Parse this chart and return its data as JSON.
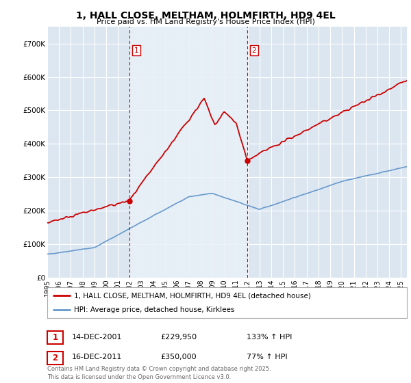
{
  "title": "1, HALL CLOSE, MELTHAM, HOLMFIRTH, HD9 4EL",
  "subtitle": "Price paid vs. HM Land Registry's House Price Index (HPI)",
  "background_color": "#ffffff",
  "plot_bg_color": "#dce6f1",
  "plot_bg_between": "#e8f0f8",
  "grid_color": "#ffffff",
  "hpi_color": "#6699cc",
  "price_color": "#cc0000",
  "vline_color": "#cc0000",
  "ylim": [
    0,
    750000
  ],
  "yticks": [
    0,
    100000,
    200000,
    300000,
    400000,
    500000,
    600000,
    700000
  ],
  "ytick_labels": [
    "£0",
    "£100K",
    "£200K",
    "£300K",
    "£400K",
    "£500K",
    "£600K",
    "£700K"
  ],
  "sale1_x": 2001.95,
  "sale1_price": 229950,
  "sale1_label": "1",
  "sale2_x": 2011.95,
  "sale2_price": 350000,
  "sale2_label": "2",
  "legend_line1": "1, HALL CLOSE, MELTHAM, HOLMFIRTH, HD9 4EL (detached house)",
  "legend_line2": "HPI: Average price, detached house, Kirklees",
  "table_row1": [
    "1",
    "14-DEC-2001",
    "£229,950",
    "133% ↑ HPI"
  ],
  "table_row2": [
    "2",
    "16-DEC-2011",
    "£350,000",
    "77% ↑ HPI"
  ],
  "footer": "Contains HM Land Registry data © Crown copyright and database right 2025.\nThis data is licensed under the Open Government Licence v3.0.",
  "xmin": 1995,
  "xmax": 2025.5
}
